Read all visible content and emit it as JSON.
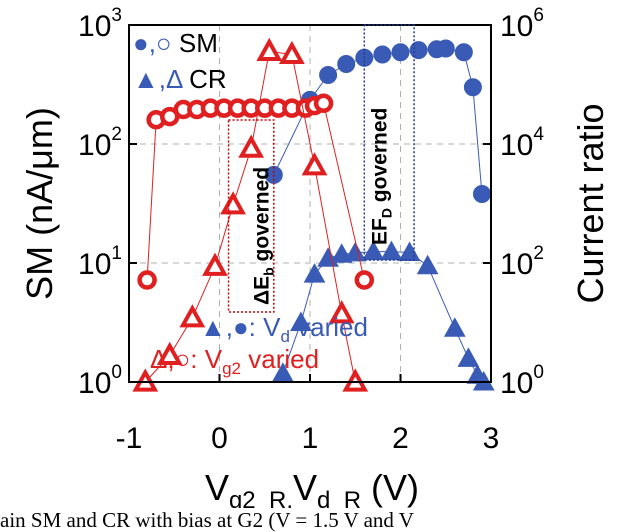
{
  "chart_data": {
    "type": "scatter",
    "x_axis": {
      "label_main": "V",
      "label_sub1": "g2_R,",
      "label_main2": "V",
      "label_sub2": "d_R",
      "label_unit": " (V)",
      "range": [
        -1,
        3
      ],
      "ticks": [
        "-1",
        "0",
        "1",
        "2",
        "3"
      ]
    },
    "y_left": {
      "label": "SM (nA/μm)",
      "scale": "log",
      "range": [
        1,
        1000
      ],
      "ticks": [
        {
          "base": "10",
          "exp": "0"
        },
        {
          "base": "10",
          "exp": "1"
        },
        {
          "base": "10",
          "exp": "2"
        },
        {
          "base": "10",
          "exp": "3"
        }
      ]
    },
    "y_right": {
      "label": "Current ratio",
      "scale": "log",
      "range": [
        1,
        1000000
      ],
      "ticks": [
        {
          "base": "10",
          "exp": "0"
        },
        {
          "base": "10",
          "exp": "2"
        },
        {
          "base": "10",
          "exp": "4"
        },
        {
          "base": "10",
          "exp": "6"
        }
      ]
    },
    "grid": true,
    "series": [
      {
        "name": "SM (V_d varied)",
        "color": "#3a5bb5",
        "marker": "circle-filled",
        "axis": "left",
        "x": [
          0.6,
          1.0,
          1.2,
          1.4,
          1.6,
          1.8,
          2.0,
          2.2,
          2.4,
          2.5,
          2.7,
          2.8,
          2.9
        ],
        "y": [
          55,
          235,
          380,
          470,
          530,
          565,
          590,
          615,
          625,
          635,
          590,
          300,
          38
        ]
      },
      {
        "name": "CR (V_d varied)",
        "color": "#3a5bb5",
        "marker": "triangle-filled",
        "axis": "right",
        "x": [
          0.7,
          0.9,
          1.05,
          1.2,
          1.35,
          1.5,
          1.7,
          1.9,
          2.1,
          2.3,
          2.6,
          2.75,
          2.85,
          2.92
        ],
        "y": [
          1.4,
          10,
          65,
          120,
          140,
          148,
          155,
          155,
          150,
          90,
          8,
          2.5,
          1.3,
          1.0
        ]
      },
      {
        "name": "SM (V_g2 varied)",
        "color": "#e02020",
        "marker": "circle-open",
        "axis": "left",
        "x": [
          -0.8,
          -0.7,
          -0.55,
          -0.4,
          -0.25,
          -0.1,
          0.05,
          0.2,
          0.35,
          0.5,
          0.65,
          0.8,
          0.95,
          1.05,
          1.15,
          1.6
        ],
        "y": [
          7.2,
          160,
          170,
          195,
          195,
          200,
          200,
          200,
          200,
          200,
          200,
          200,
          200,
          210,
          220,
          7.2
        ]
      },
      {
        "name": "CR (V_g2 varied)",
        "color": "#e02020",
        "marker": "triangle-open",
        "axis": "right",
        "x": [
          -0.82,
          -0.55,
          -0.3,
          -0.05,
          0.15,
          0.35,
          0.55,
          0.8,
          1.05,
          1.35,
          1.5
        ],
        "y": [
          1,
          2.8,
          12,
          88,
          950,
          8500,
          360000,
          320000,
          4300,
          14,
          1
        ]
      }
    ],
    "legend": {
      "sm": {
        "sym": "●,○",
        "text": " SM"
      },
      "cr": {
        "sym": "▲,Δ",
        "text": " CR"
      },
      "vd": {
        "sym": "▲,●",
        "text": ": V",
        "sub": "d",
        "text2": " varied"
      },
      "vg2": {
        "sym": "Δ,○",
        "text": ": V",
        "sub": "g2",
        "text2": " varied"
      }
    },
    "annotations": [
      {
        "id": "eb",
        "text_pre": "ΔE",
        "sub": "b",
        "text_post": " governed",
        "color": "#c00000",
        "x_range": [
          0.1,
          0.6
        ]
      },
      {
        "id": "efd",
        "text_pre": "EF",
        "sub": "D",
        "text_post": " governed",
        "color": "#1f3a93",
        "x_range": [
          1.6,
          2.15
        ]
      }
    ]
  },
  "caption": "ain SM and CR with bias at G2 (V   = 1.5 V and V"
}
